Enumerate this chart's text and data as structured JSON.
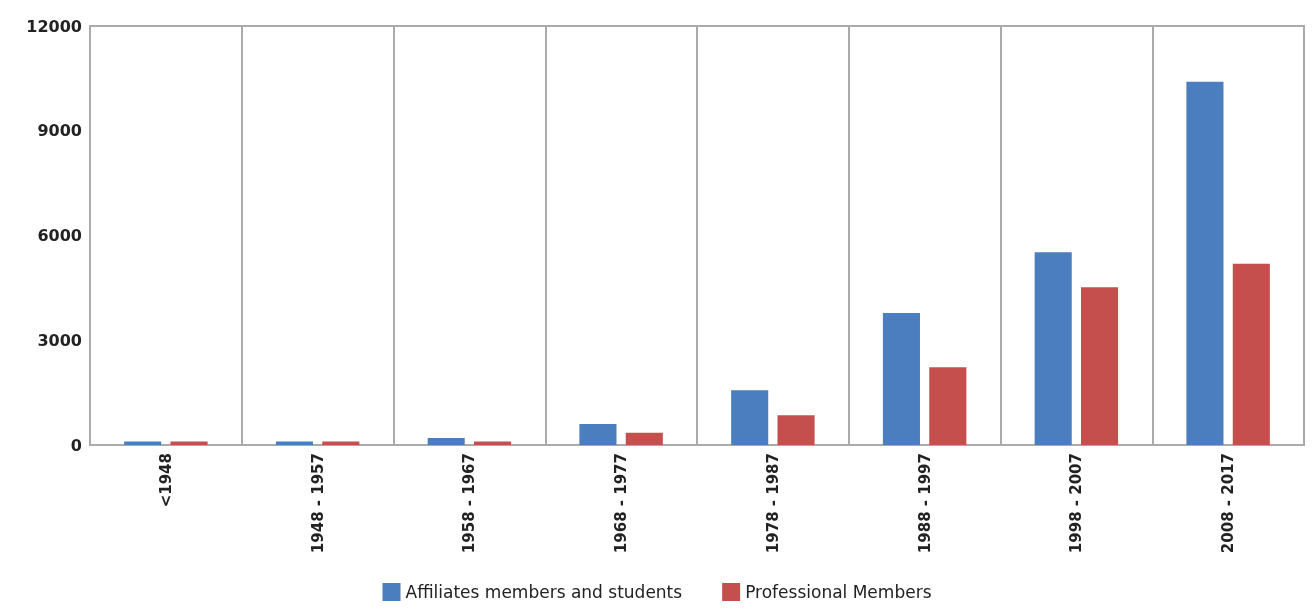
{
  "chart_data": {
    "type": "bar",
    "categories": [
      "<1948",
      "1948 - 1957",
      "1958 - 1967",
      "1968 - 1977",
      "1978 - 1987",
      "1988 - 1997",
      "1998 - 2007",
      "2008 - 2017"
    ],
    "series": [
      {
        "name": "Affiliates members and students",
        "color": "#4a7ebf",
        "values": [
          100,
          100,
          200,
          600,
          1570,
          3780,
          5520,
          10400
        ]
      },
      {
        "name": "Professional Members",
        "color": "#c44f4d",
        "values": [
          100,
          100,
          100,
          350,
          850,
          2230,
          4520,
          5190
        ]
      }
    ],
    "ylim": [
      0,
      12000
    ],
    "yticks": [
      0,
      3000,
      6000,
      9000,
      12000
    ],
    "grid": "x",
    "legend": "bottom"
  }
}
